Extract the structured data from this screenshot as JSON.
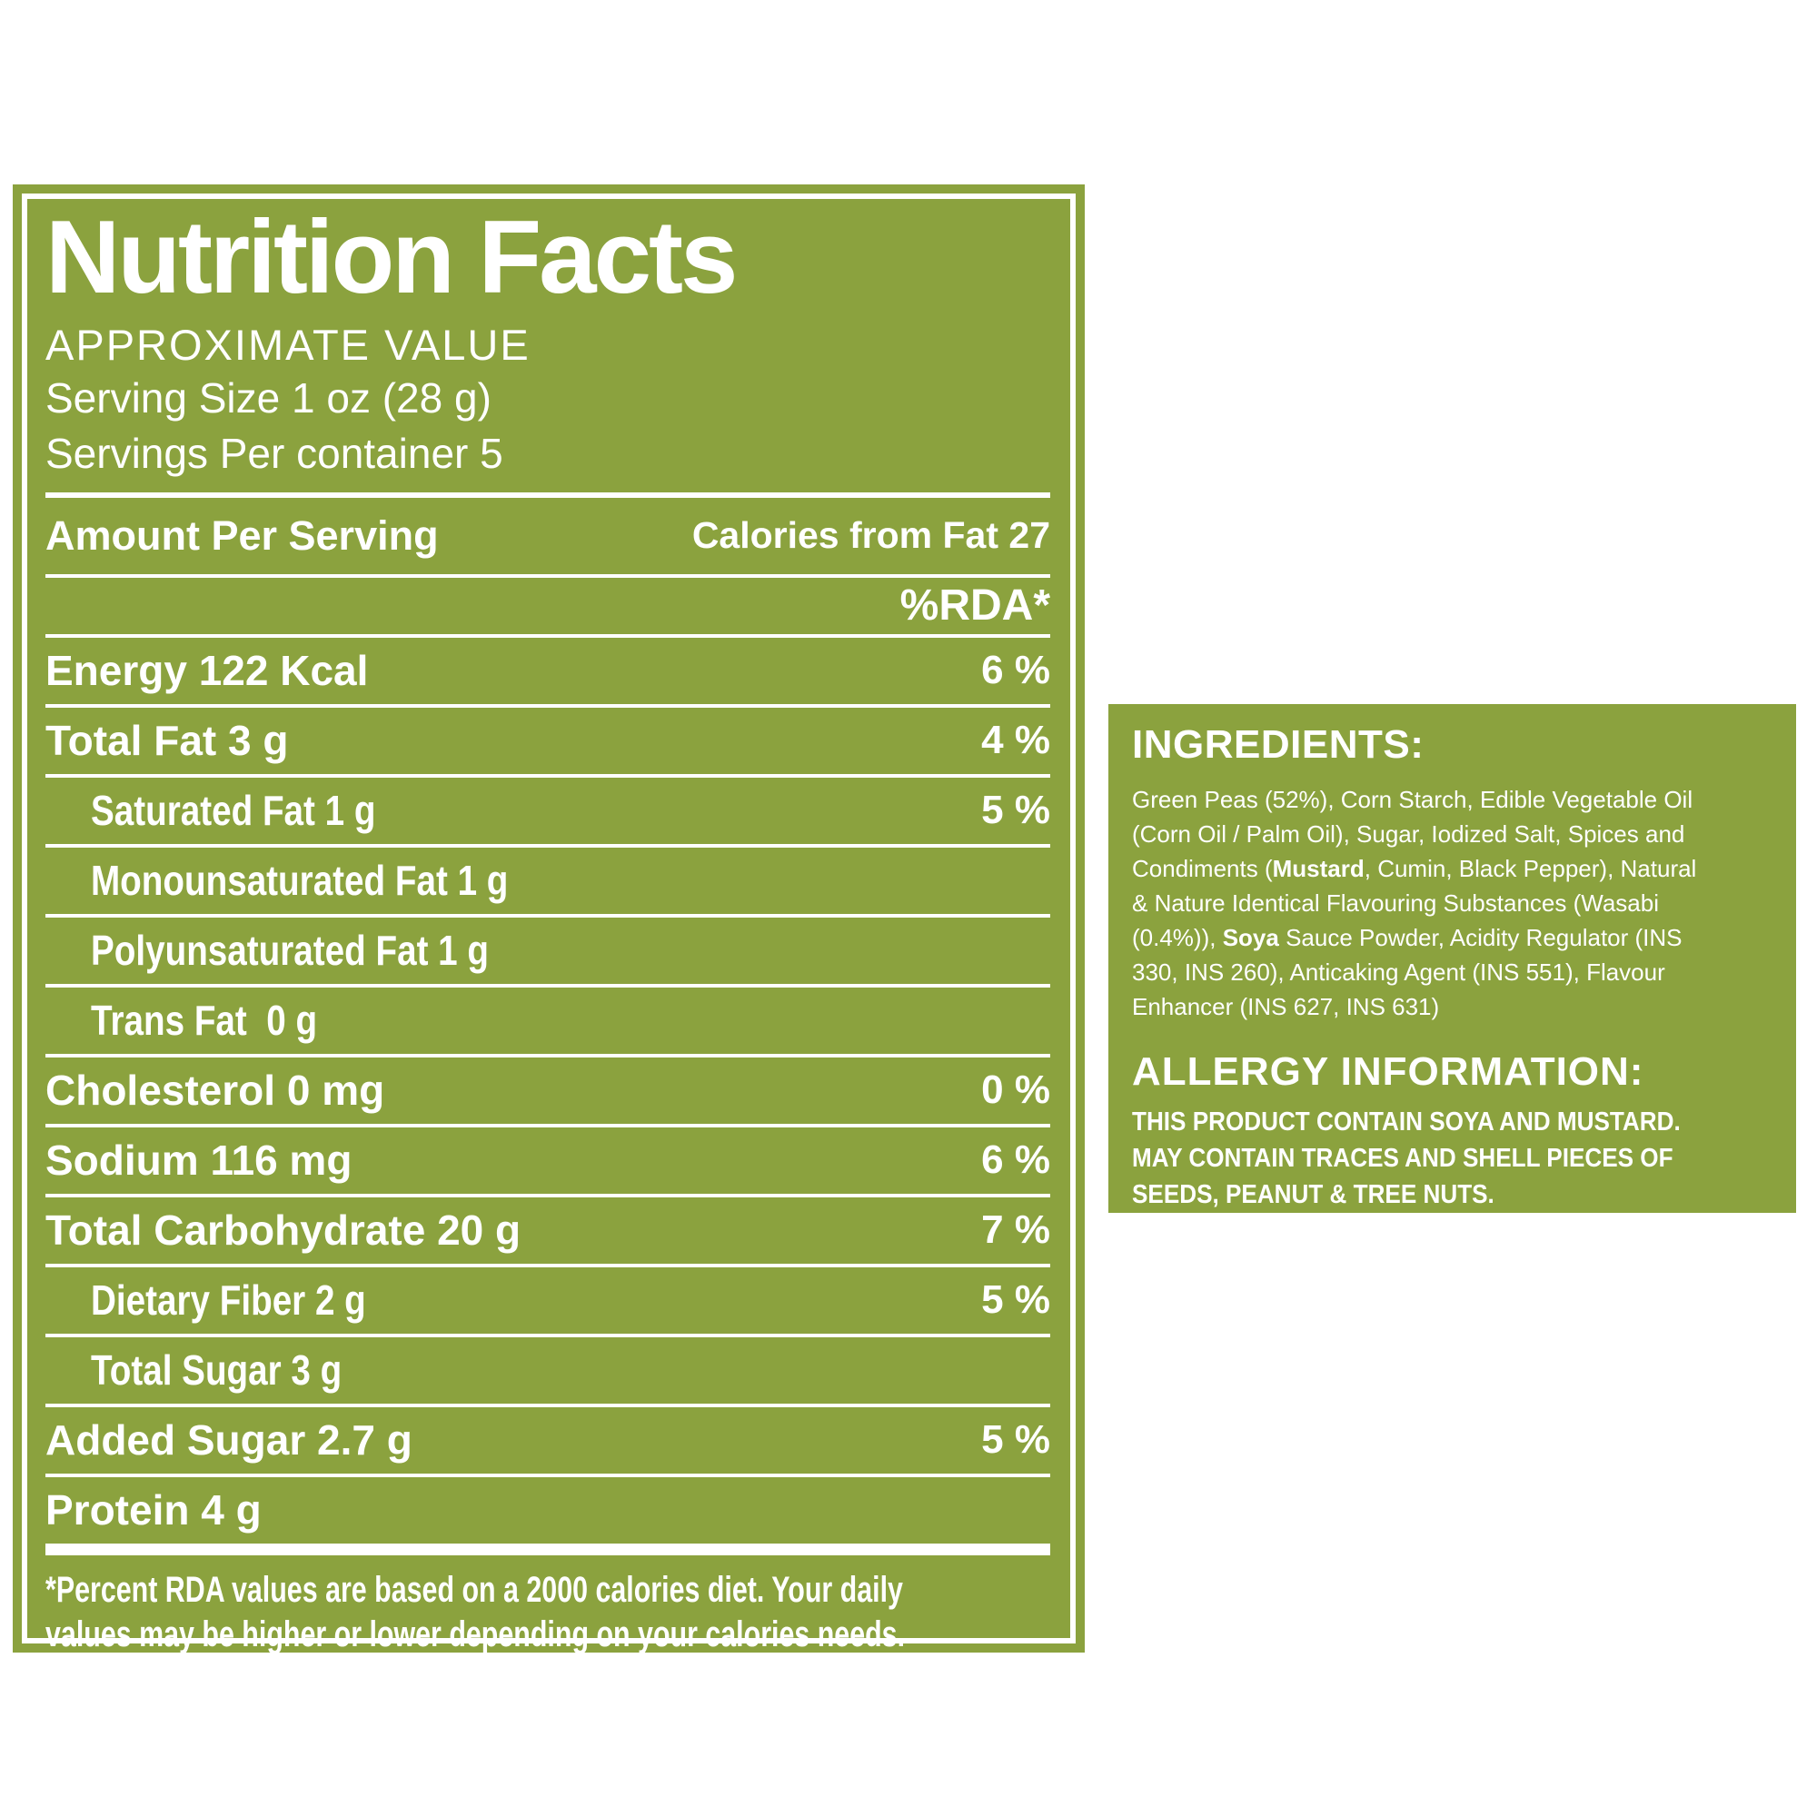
{
  "colors": {
    "label_green": "#8ba23e",
    "text": "#ffffff",
    "page_bg": "#ffffff"
  },
  "nutrition_label": {
    "title": "Nutrition Facts",
    "subtitle": "APPROXIMATE VALUE",
    "serving_size": "Serving Size 1 oz (28 g)",
    "servings_per_container": "Servings Per container 5",
    "amount_per_serving": "Amount Per Serving",
    "calories_from_fat": "Calories from Fat 27",
    "rda_header": "%RDA*",
    "rows": [
      {
        "label": "Energy 122 Kcal",
        "value": "6 %",
        "indent": false,
        "condensed": false
      },
      {
        "label": "Total Fat 3 g",
        "value": "4 %",
        "indent": false,
        "condensed": false
      },
      {
        "label": "Saturated Fat 1 g",
        "value": "5 %",
        "indent": true,
        "condensed": true
      },
      {
        "label": "Monounsaturated Fat 1 g",
        "value": "",
        "indent": true,
        "condensed": true
      },
      {
        "label": "Polyunsaturated Fat 1 g",
        "value": "",
        "indent": true,
        "condensed": true
      },
      {
        "label": "Trans Fat  0 g",
        "value": "",
        "indent": true,
        "condensed": true
      },
      {
        "label": "Cholesterol 0 mg",
        "value": "0 %",
        "indent": false,
        "condensed": false
      },
      {
        "label": "Sodium 116 mg",
        "value": "6 %",
        "indent": false,
        "condensed": false
      },
      {
        "label": "Total Carbohydrate 20 g",
        "value": "7 %",
        "indent": false,
        "condensed": false
      },
      {
        "label": "Dietary Fiber 2 g",
        "value": "5 %",
        "indent": true,
        "condensed": true
      },
      {
        "label": "Total Sugar 3 g",
        "value": "",
        "indent": true,
        "condensed": true
      },
      {
        "label": "Added Sugar 2.7 g",
        "value": "5 %",
        "indent": false,
        "condensed": false
      },
      {
        "label": "Protein 4 g",
        "value": "",
        "indent": false,
        "condensed": false
      }
    ],
    "footnote_lines": [
      "*Percent RDA values are based on a 2000 calories diet. Your daily",
      "values may be higher or lower depending on your calories needs."
    ]
  },
  "ingredients_panel": {
    "heading": "INGREDIENTS:",
    "lines": [
      [
        {
          "t": "Green Peas (52%), Corn Starch, Edible Vegetable Oil"
        }
      ],
      [
        {
          "t": "(Corn Oil / Palm Oil), Sugar, Iodized Salt, Spices and"
        }
      ],
      [
        {
          "t": "Condiments ("
        },
        {
          "t": "Mustard",
          "b": true
        },
        {
          "t": ", Cumin, Black Pepper), Natural"
        }
      ],
      [
        {
          "t": "& Nature Identical Flavouring Substances (Wasabi"
        }
      ],
      [
        {
          "t": "(0.4%)), "
        },
        {
          "t": "Soya",
          "b": true
        },
        {
          "t": " Sauce Powder, Acidity Regulator (INS"
        }
      ],
      [
        {
          "t": "330, INS 260), Anticaking Agent (INS 551), Flavour"
        }
      ],
      [
        {
          "t": "Enhancer (INS 627, INS 631)"
        }
      ]
    ],
    "allergy_heading": "ALLERGY INFORMATION:",
    "allergy_lines": [
      "THIS PRODUCT CONTAIN SOYA AND MUSTARD.",
      "MAY CONTAIN TRACES AND SHELL PIECES OF",
      "SEEDS, PEANUT & TREE NUTS."
    ]
  }
}
